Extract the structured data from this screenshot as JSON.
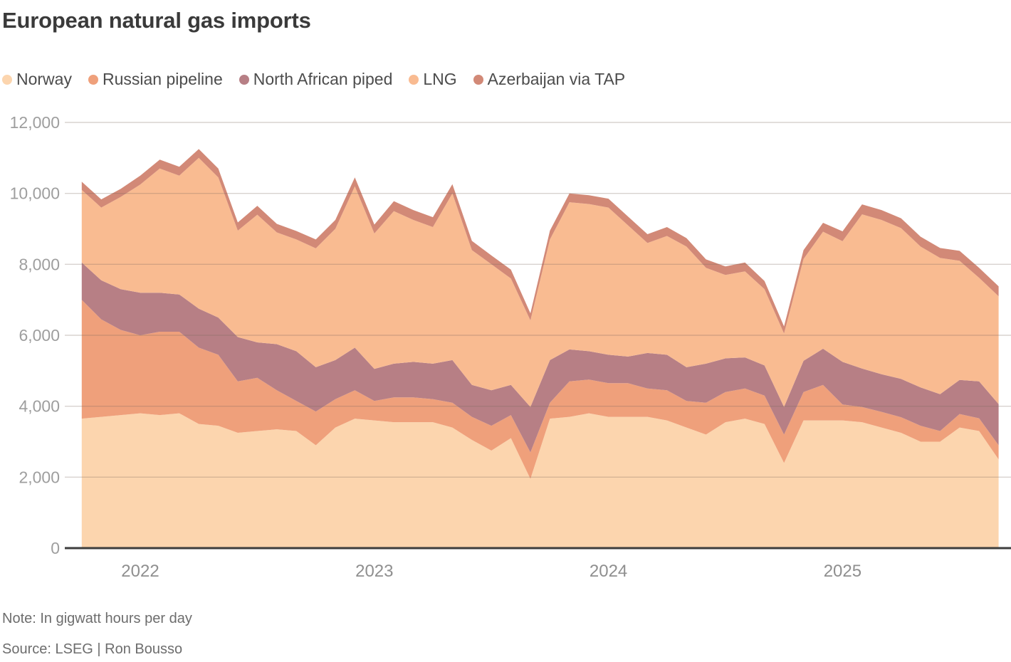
{
  "title": "European natural gas imports",
  "note": "Note: In gigwatt hours per day",
  "source": "Source: LSEG | Ron Bousso",
  "colors": {
    "background": "#ffffff",
    "title_text": "#3a3a3a",
    "legend_text": "#4c4c4c",
    "note_text": "#6d6d6d",
    "y_tick_text": "#9e9e9e",
    "x_tick_text": "#8f8f8f",
    "gridline": "#d9d9d9",
    "baseline": "#3d3d3d"
  },
  "chart_data": {
    "type": "area",
    "stacked": true,
    "title": "European natural gas imports",
    "unit": "gigawatt hours per day",
    "grid": true,
    "legend_position": "top",
    "x_months": [
      "2021-10",
      "2021-11",
      "2021-12",
      "2022-01",
      "2022-02",
      "2022-03",
      "2022-04",
      "2022-05",
      "2022-06",
      "2022-07",
      "2022-08",
      "2022-09",
      "2022-10",
      "2022-11",
      "2022-12",
      "2023-01",
      "2023-02",
      "2023-03",
      "2023-04",
      "2023-05",
      "2023-06",
      "2023-07",
      "2023-08",
      "2023-09",
      "2023-10",
      "2023-11",
      "2023-12",
      "2024-01",
      "2024-02",
      "2024-03",
      "2024-04",
      "2024-05",
      "2024-06",
      "2024-07",
      "2024-08",
      "2024-09",
      "2024-10",
      "2024-11",
      "2024-12",
      "2025-01",
      "2025-02",
      "2025-03",
      "2025-04",
      "2025-05",
      "2025-06",
      "2025-07",
      "2025-08",
      "2025-09"
    ],
    "series": [
      {
        "name": "Norway",
        "color": "#fcd5ae",
        "values": [
          3650,
          3700,
          3750,
          3800,
          3750,
          3800,
          3500,
          3450,
          3250,
          3300,
          3350,
          3300,
          2900,
          3400,
          3650,
          3600,
          3550,
          3550,
          3550,
          3400,
          3050,
          2750,
          3100,
          1950,
          3650,
          3700,
          3800,
          3700,
          3700,
          3700,
          3600,
          3400,
          3200,
          3550,
          3650,
          3500,
          2400,
          3600,
          3600,
          3600,
          3550,
          3400,
          3250,
          3000,
          3000,
          3400,
          3300,
          2500
        ]
      },
      {
        "name": "Russian pipeline",
        "color": "#efa07b",
        "values": [
          3350,
          2750,
          2400,
          2200,
          2350,
          2300,
          2150,
          2000,
          1450,
          1500,
          1100,
          850,
          950,
          800,
          800,
          550,
          700,
          700,
          650,
          700,
          650,
          700,
          650,
          750,
          450,
          1000,
          950,
          950,
          950,
          800,
          850,
          750,
          900,
          850,
          850,
          800,
          800,
          800,
          1000,
          450,
          430,
          440,
          440,
          450,
          300,
          380,
          360,
          400
        ]
      },
      {
        "name": "North African piped",
        "color": "#b77f85",
        "values": [
          1050,
          1100,
          1150,
          1200,
          1100,
          1050,
          1100,
          1050,
          1250,
          1000,
          1300,
          1400,
          1250,
          1100,
          1200,
          900,
          950,
          1000,
          1000,
          1200,
          900,
          1000,
          850,
          1280,
          1200,
          900,
          800,
          800,
          750,
          1000,
          1000,
          950,
          1100,
          950,
          875,
          850,
          780,
          880,
          1020,
          1200,
          1080,
          1060,
          1080,
          1080,
          1040,
          960,
          1040,
          1160
        ]
      },
      {
        "name": "LNG",
        "color": "#f9bb91",
        "values": [
          2050,
          2050,
          2600,
          3050,
          3500,
          3350,
          4250,
          3950,
          3000,
          3600,
          3150,
          3150,
          3350,
          3700,
          4550,
          3820,
          4300,
          4000,
          3850,
          4700,
          3800,
          3550,
          3000,
          2440,
          3400,
          4150,
          4150,
          4150,
          3700,
          3100,
          3350,
          3400,
          2700,
          2350,
          2425,
          2150,
          2070,
          2870,
          3300,
          3400,
          4350,
          4350,
          4250,
          3970,
          3840,
          3360,
          2920,
          3040
        ]
      },
      {
        "name": "Azerbaijan via TAP",
        "color": "#d28977",
        "values": [
          230,
          230,
          230,
          250,
          250,
          250,
          250,
          250,
          230,
          250,
          240,
          240,
          250,
          250,
          250,
          250,
          280,
          280,
          280,
          260,
          260,
          250,
          250,
          200,
          250,
          250,
          250,
          250,
          250,
          250,
          250,
          240,
          240,
          240,
          250,
          230,
          200,
          250,
          250,
          280,
          280,
          280,
          280,
          280,
          280,
          280,
          280,
          280
        ]
      }
    ],
    "y_axis": {
      "min": 0,
      "max": 12000,
      "tick_step": 2000,
      "tick_labels": [
        "0",
        "2,000",
        "4,000",
        "6,000",
        "8,000",
        "10,000",
        "12,000"
      ]
    },
    "x_axis": {
      "year_labels": [
        {
          "label": "2022",
          "month_index": 3
        },
        {
          "label": "2023",
          "month_index": 15
        },
        {
          "label": "2024",
          "month_index": 27
        },
        {
          "label": "2025",
          "month_index": 39
        }
      ]
    }
  }
}
